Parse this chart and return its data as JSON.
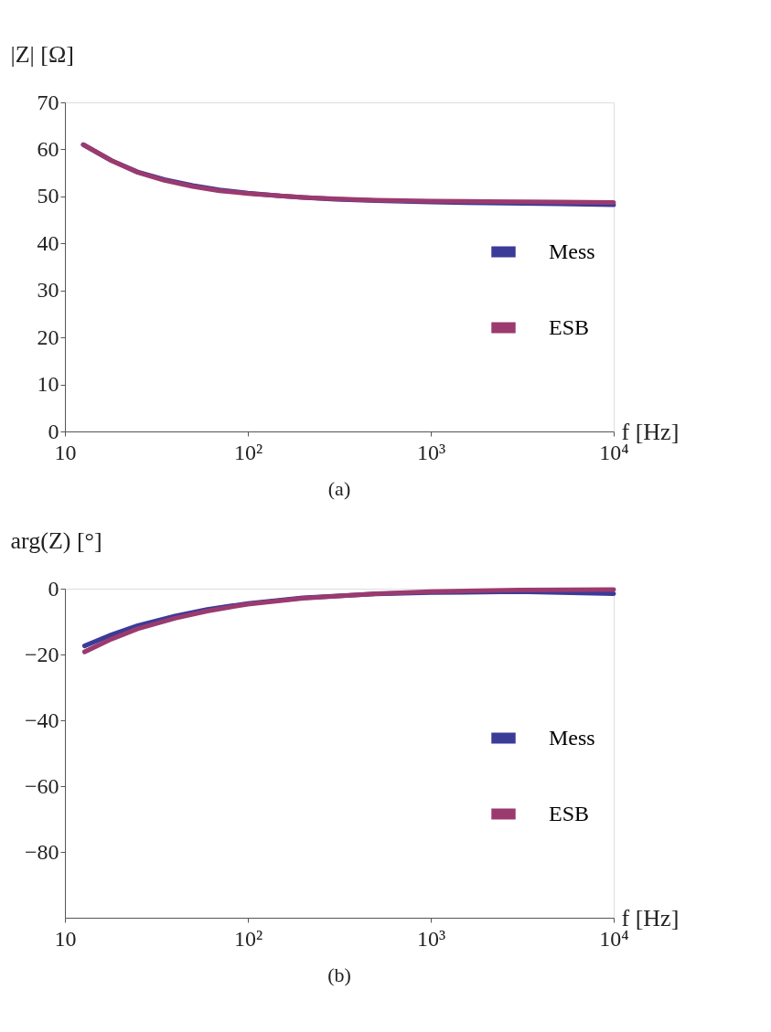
{
  "chart_data": [
    {
      "type": "line",
      "ylabel": "|Z| [Ω]",
      "xlabel": "f [Hz]",
      "annotations": [
        "(a)"
      ],
      "log": "x",
      "grid": false,
      "legend": "right",
      "line_style": "solid",
      "marker": "none",
      "xlim": [
        10,
        10000
      ],
      "xticks": [
        {
          "value": 10,
          "label": "10"
        },
        {
          "value": 100,
          "label": "10²"
        },
        {
          "value": 1000,
          "label": "10³"
        },
        {
          "value": 10000,
          "label": "10⁴"
        }
      ],
      "ylim": [
        0,
        70
      ],
      "yticks": [
        0,
        10,
        20,
        30,
        40,
        50,
        60,
        70
      ],
      "series": [
        {
          "name": "Mess",
          "color": "#3b3b98",
          "x": [
            12.6,
            18,
            25,
            35,
            50,
            70,
            100,
            150,
            200,
            300,
            500,
            1000,
            2000,
            5000,
            10000
          ],
          "values": [
            61,
            57.6,
            55.2,
            53.6,
            52.3,
            51.4,
            50.7,
            50.1,
            49.8,
            49.4,
            49.1,
            48.8,
            48.6,
            48.4,
            48.2
          ]
        },
        {
          "name": "ESB",
          "color": "#9b3a6f",
          "x": [
            12.6,
            18,
            25,
            35,
            50,
            70,
            100,
            150,
            200,
            300,
            500,
            1000,
            2000,
            5000,
            10000
          ],
          "values": [
            61,
            57.6,
            55.1,
            53.4,
            52.1,
            51.2,
            50.6,
            50.1,
            49.8,
            49.5,
            49.2,
            49,
            48.9,
            48.8,
            48.7
          ]
        }
      ]
    },
    {
      "type": "line",
      "ylabel": "arg(Z) [°]",
      "xlabel": "f [Hz]",
      "annotations": [
        "(b)"
      ],
      "log": "x",
      "grid": false,
      "legend": "right",
      "line_style": "solid",
      "marker": "none",
      "xlim": [
        10,
        10000
      ],
      "xticks": [
        {
          "value": 10,
          "label": "10"
        },
        {
          "value": 100,
          "label": "10²"
        },
        {
          "value": 1000,
          "label": "10³"
        },
        {
          "value": 10000,
          "label": "10⁴"
        }
      ],
      "ylim": [
        -100,
        0
      ],
      "yticks": [
        {
          "value": -80,
          "label": "−80"
        },
        {
          "value": -60,
          "label": "−60"
        },
        {
          "value": -40,
          "label": "−40"
        },
        {
          "value": -20,
          "label": "−20"
        },
        0
      ],
      "series": [
        {
          "name": "Mess",
          "color": "#3b3b98",
          "x": [
            12.8,
            18,
            25,
            40,
            60,
            100,
            200,
            500,
            1000,
            3000,
            10000
          ],
          "values": [
            -17.4,
            -14,
            -11.2,
            -8.3,
            -6.3,
            -4.5,
            -2.8,
            -1.6,
            -1.2,
            -0.9,
            -1.5
          ]
        },
        {
          "name": "ESB",
          "color": "#9b3a6f",
          "x": [
            12.8,
            18,
            25,
            40,
            60,
            100,
            200,
            500,
            1000,
            3000,
            10000
          ],
          "values": [
            -19.2,
            -15.3,
            -12.2,
            -9,
            -6.8,
            -4.7,
            -2.9,
            -1.5,
            -0.9,
            -0.4,
            -0.3
          ]
        }
      ]
    }
  ]
}
